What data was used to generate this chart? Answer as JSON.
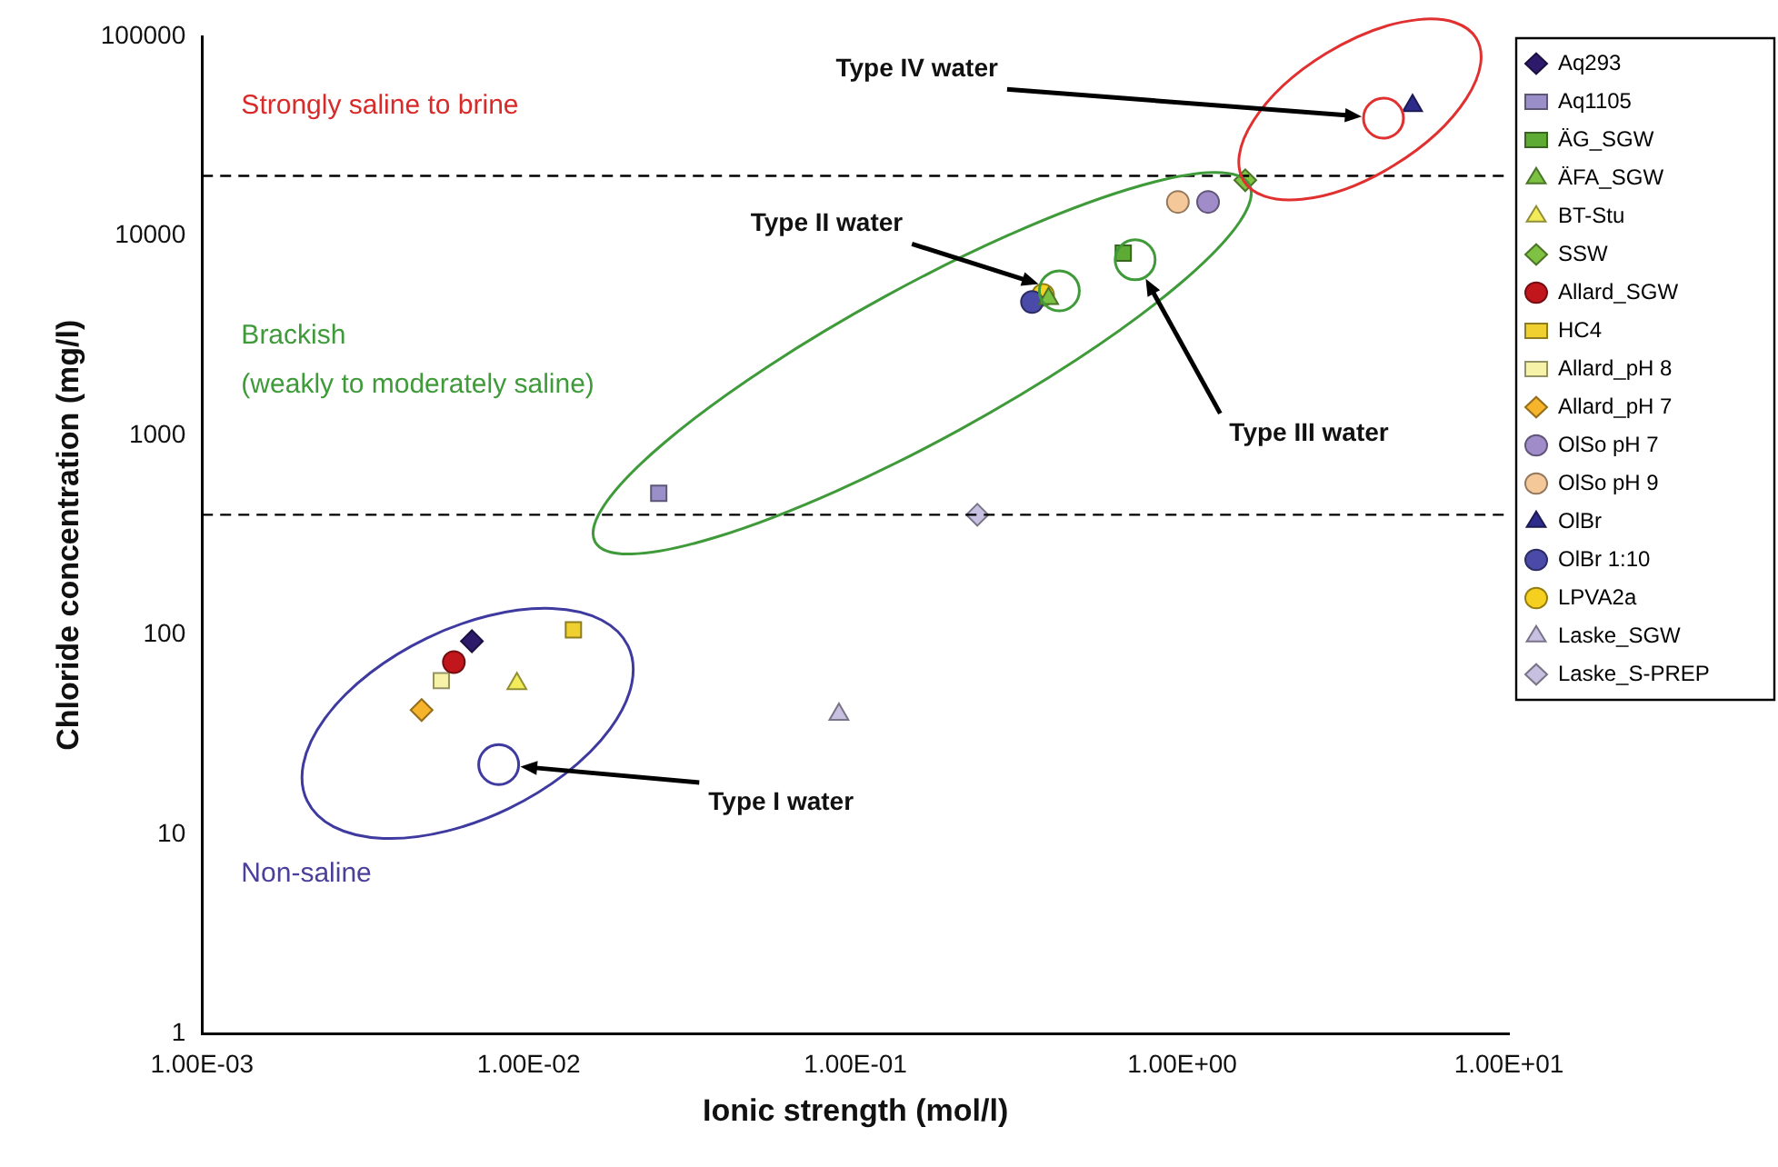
{
  "chart_data": {
    "type": "scatter",
    "xlabel": "Ionic strength (mol/l)",
    "ylabel": "Chloride concentration (mg/l)",
    "log": "xy",
    "grid": false,
    "legend": "right",
    "xlim": [
      0.001,
      10
    ],
    "xticks": [
      {
        "value": 0.001,
        "label": "1.00E-03"
      },
      {
        "value": 0.01,
        "label": "1.00E-02"
      },
      {
        "value": 0.1,
        "label": "1.00E-01"
      },
      {
        "value": 1,
        "label": "1.00E+00"
      },
      {
        "value": 10,
        "label": "1.00E+01"
      }
    ],
    "ylim": [
      1,
      100000
    ],
    "yticks": [
      1,
      10,
      100,
      1000,
      10000,
      100000
    ],
    "ref_lines": [
      {
        "axis": "y",
        "value": 20000,
        "color": "#000000",
        "line_style": "dashed"
      },
      {
        "axis": "y",
        "value": 400,
        "color": "#000000",
        "line_style": "dashed"
      }
    ],
    "annotations": [
      "Strongly saline to brine",
      "Brackish",
      "(weakly to moderately saline)",
      "Non-saline",
      "Type I water",
      "Type II water",
      "Type III water",
      "Type IV water"
    ],
    "series": [
      {
        "name": "Aq293",
        "color": "#2e1a6b",
        "marker": "diamond",
        "x": [
          0.0067
        ],
        "values": [
          93
        ]
      },
      {
        "name": "Aq1105",
        "color": "#9b8fc9",
        "marker": "square",
        "x": [
          0.025
        ],
        "values": [
          513
        ]
      },
      {
        "name": "ÄG_SGW",
        "color": "#5daa35",
        "marker": "square",
        "x": [
          0.66
        ],
        "values": [
          8200
        ]
      },
      {
        "name": "ÄFA_SGW",
        "color": "#7cc242",
        "marker": "triangle",
        "x": [
          0.39
        ],
        "values": [
          4850
        ]
      },
      {
        "name": "BT-Stu",
        "color": "#f2ec5a",
        "marker": "triangle",
        "x": [
          0.0092
        ],
        "values": [
          57
        ]
      },
      {
        "name": "SSW",
        "color": "#7fc241",
        "marker": "diamond",
        "x": [
          1.56
        ],
        "values": [
          19000
        ]
      },
      {
        "name": "Allard_SGW",
        "color": "#c0161c",
        "marker": "circle",
        "x": [
          0.0059
        ],
        "values": [
          73
        ]
      },
      {
        "name": "HC4",
        "color": "#f0d030",
        "marker": "square",
        "x": [
          0.0137
        ],
        "values": [
          106
        ]
      },
      {
        "name": "Allard_pH 8",
        "color": "#f6f3a8",
        "marker": "square",
        "x": [
          0.0054
        ],
        "values": [
          59
        ]
      },
      {
        "name": "Allard_pH 7",
        "color": "#f6b42c",
        "marker": "diamond",
        "x": [
          0.0047
        ],
        "values": [
          42
        ]
      },
      {
        "name": "OlSo pH 7",
        "color": "#a08cc8",
        "marker": "circle",
        "x": [
          1.2
        ],
        "values": [
          14800
        ]
      },
      {
        "name": "OlSo pH 9",
        "color": "#f5c89a",
        "marker": "circle",
        "x": [
          0.97
        ],
        "values": [
          14800
        ]
      },
      {
        "name": "OlBr",
        "color": "#2e2c8a",
        "marker": "triangle",
        "x": [
          5.07
        ],
        "values": [
          45000
        ]
      },
      {
        "name": "OlBr 1:10",
        "color": "#4a4aa8",
        "marker": "circle",
        "x": [
          0.347
        ],
        "values": [
          4660
        ]
      },
      {
        "name": "LPVA2a",
        "color": "#f5d020",
        "marker": "circle",
        "x": [
          0.375
        ],
        "values": [
          5060
        ]
      },
      {
        "name": "Laske_SGW",
        "color": "#c8c0e0",
        "marker": "triangle",
        "x": [
          0.089
        ],
        "values": [
          40
        ]
      },
      {
        "name": "Laske_S-PREP",
        "color": "#c8c0e0",
        "marker": "diamond",
        "x": [
          0.236
        ],
        "values": [
          400
        ]
      }
    ]
  }
}
